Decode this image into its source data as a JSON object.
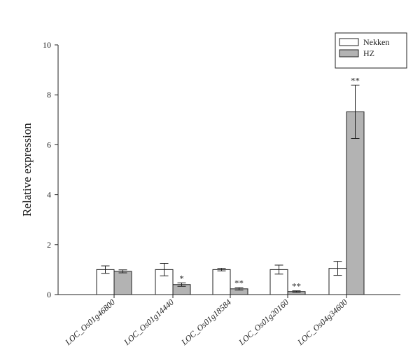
{
  "chart_data": {
    "type": "bar",
    "title": "",
    "xlabel": "",
    "ylabel": "Relative expression",
    "ylim": [
      0,
      10
    ],
    "yticks": [
      "0",
      "2",
      "4",
      "6",
      "8",
      "10"
    ],
    "grid": false,
    "legend_position": "top-right",
    "categories": [
      "LOC_Os01g46800",
      "LOC_Os01g14440",
      "LOC_Os01g18584",
      "LOC_Os01g20160",
      "LOC_Os04g34600"
    ],
    "series": [
      {
        "name": "Nekken",
        "color": "#ffffff",
        "values": [
          1.0,
          1.0,
          1.0,
          1.0,
          1.05
        ],
        "errors": [
          0.15,
          0.25,
          0.05,
          0.18,
          0.28
        ],
        "significance": [
          "",
          "",
          "",
          "",
          ""
        ]
      },
      {
        "name": "HZ",
        "color": "#b3b3b3",
        "values": [
          0.93,
          0.4,
          0.23,
          0.12,
          7.32
        ],
        "errors": [
          0.06,
          0.07,
          0.05,
          0.03,
          1.07
        ],
        "significance": [
          "",
          "*",
          "**",
          "**",
          "**"
        ]
      }
    ]
  }
}
